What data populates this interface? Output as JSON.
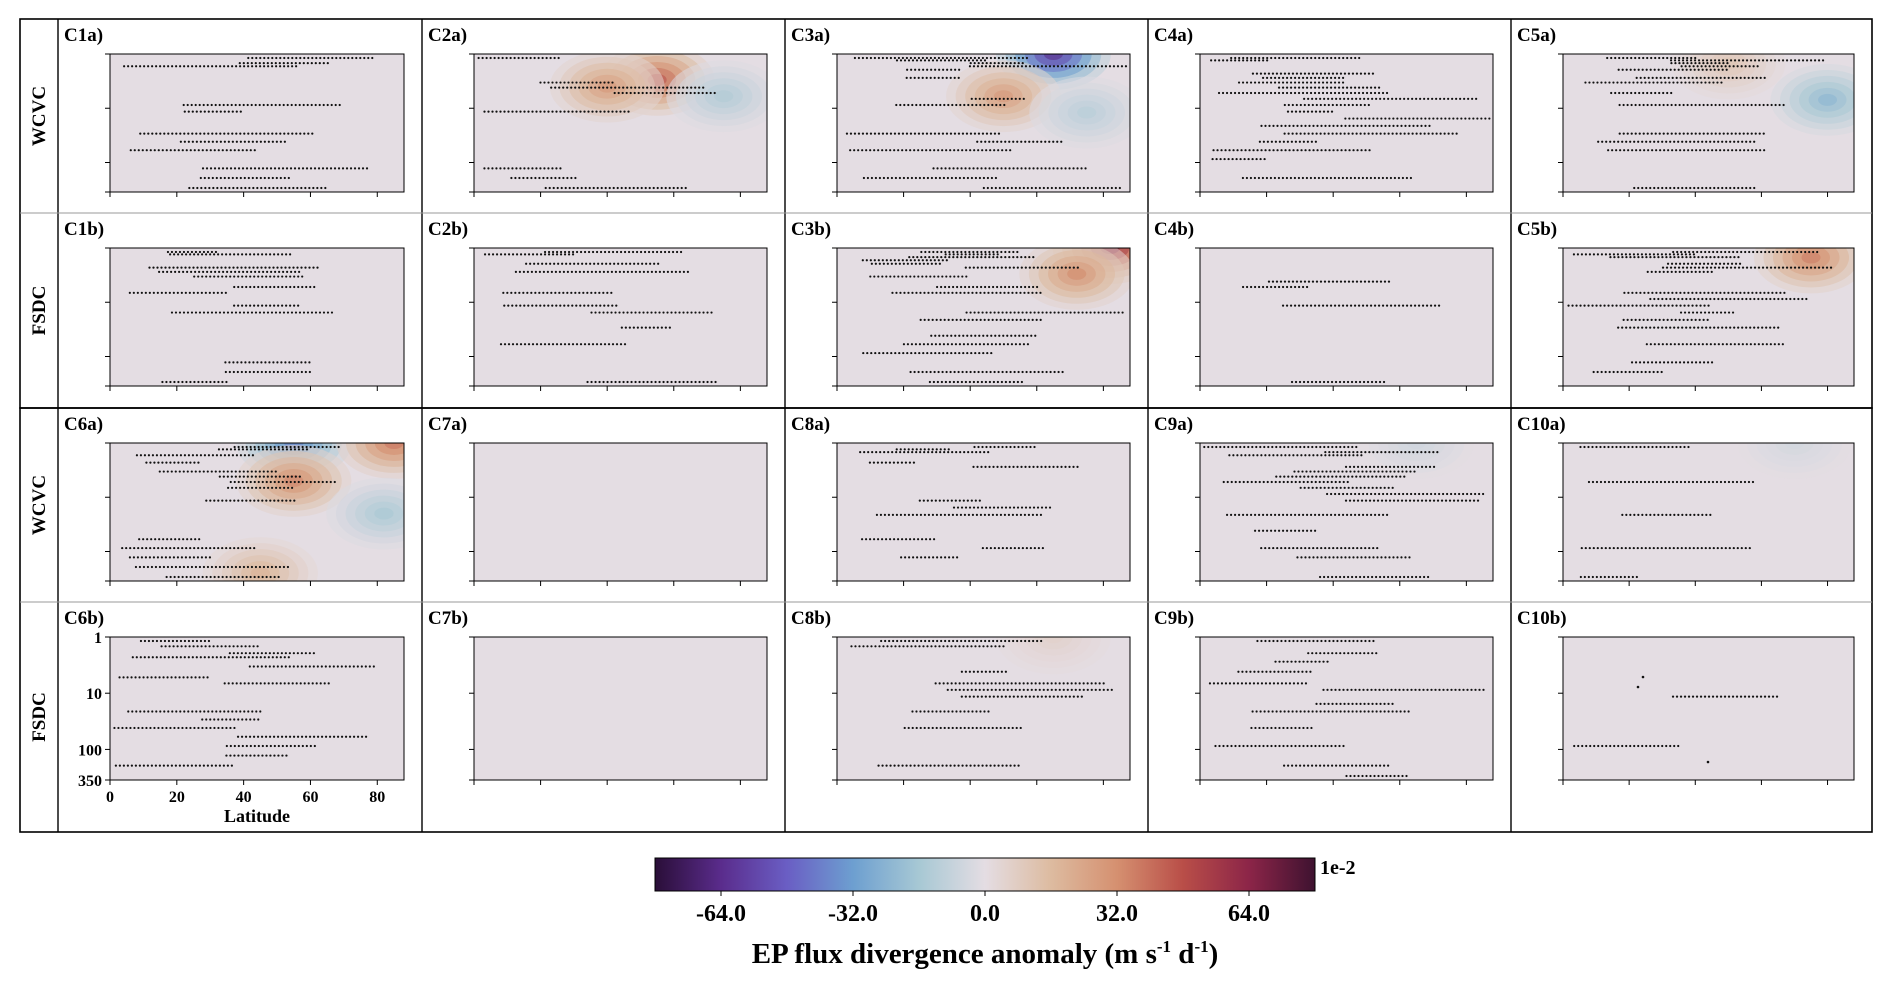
{
  "chart_data": {
    "type": "heatmap",
    "rows": [
      {
        "label": "WCVC",
        "panels": [
          "C1a)",
          "C2a)",
          "C3a)",
          "C4a)",
          "C5a)"
        ]
      },
      {
        "label": "FSDC",
        "panels": [
          "C1b)",
          "C2b)",
          "C3b)",
          "C4b)",
          "C5b)"
        ]
      },
      {
        "label": "WCVC",
        "panels": [
          "C6a)",
          "C7a)",
          "C8a)",
          "C9a)",
          "C10a)"
        ]
      },
      {
        "label": "FSDC",
        "panels": [
          "C6b)",
          "C7b)",
          "C8b)",
          "C9b)",
          "C10b)"
        ]
      }
    ],
    "xlabel": "Latitude",
    "xlim": [
      0,
      88
    ],
    "xticks": [
      0,
      20,
      40,
      60,
      80
    ],
    "ylim": [
      1,
      350
    ],
    "yscale": "log-inverted",
    "yticks": [
      1,
      10,
      100,
      350
    ],
    "colorbar": {
      "label": "EP flux divergence anomaly (m s",
      "sup1": "-1",
      "mid": " d",
      "sup2": "-1",
      "end": ")",
      "scale": "1e-2",
      "ticks": [
        -64.0,
        -32.0,
        0.0,
        32.0,
        64.0
      ],
      "tick_labels": [
        "-64.0",
        "-32.0",
        "0.0",
        "32.0",
        "64.0"
      ],
      "range": [
        -80,
        80
      ],
      "colors": [
        "#2a0e38",
        "#5a2c8c",
        "#6a5ec4",
        "#6d9fd0",
        "#a7c8d4",
        "#e4dde3",
        "#ddbba0",
        "#d59070",
        "#b94e48",
        "#8c2548",
        "#3e1230"
      ]
    },
    "anomalies": {
      "C2a)": [
        {
          "lat": 55,
          "p": 3,
          "value": 48
        },
        {
          "lat": 40,
          "p": 4,
          "value": 30
        },
        {
          "lat": 75,
          "p": 6,
          "value": -14
        }
      ],
      "C3a)": [
        {
          "lat": 65,
          "p": 1,
          "value": -66
        },
        {
          "lat": 50,
          "p": 6,
          "value": 30
        },
        {
          "lat": 75,
          "p": 12,
          "value": -12
        }
      ],
      "C5a)": [
        {
          "lat": 80,
          "p": 7,
          "value": -24
        },
        {
          "lat": 50,
          "p": 1.5,
          "value": 12
        }
      ],
      "C3b)": [
        {
          "lat": 82,
          "p": 1,
          "value": 66
        },
        {
          "lat": 72,
          "p": 3,
          "value": 34
        }
      ],
      "C5b)": [
        {
          "lat": 75,
          "p": 1.5,
          "value": 38
        }
      ],
      "C6a)": [
        {
          "lat": 55,
          "p": 1,
          "value": -40
        },
        {
          "lat": 85,
          "p": 1,
          "value": 40
        },
        {
          "lat": 55,
          "p": 5,
          "value": 36
        },
        {
          "lat": 82,
          "p": 20,
          "value": -16
        },
        {
          "lat": 45,
          "p": 250,
          "value": 20
        }
      ],
      "C8b)": [
        {
          "lat": 65,
          "p": 1,
          "value": 6
        }
      ],
      "C9a)": [
        {
          "lat": 65,
          "p": 1,
          "value": -6
        }
      ],
      "C10a)": [
        {
          "lat": 70,
          "p": 1,
          "value": -5
        }
      ]
    }
  }
}
